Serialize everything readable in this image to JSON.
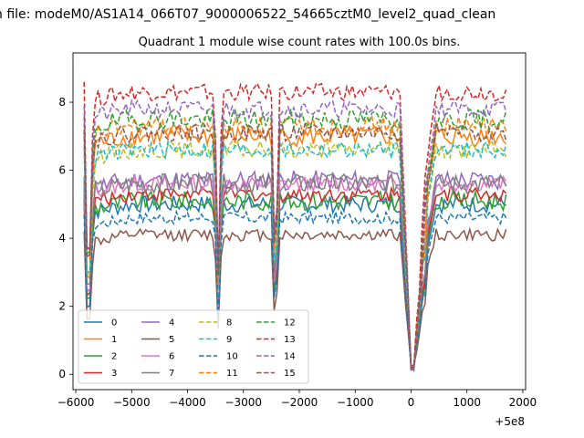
{
  "figure": {
    "suptitle": "n file: modeM0/AS1A14_066T07_9000006522_54665cztM0_level2_quad_clean",
    "title": "Quadrant 1 module wise count rates with 100.0s bins.",
    "x_offset_text": "+5e8"
  },
  "chart_data": {
    "type": "line",
    "title": "Quadrant 1 module wise count rates with 100.0s bins.",
    "xlabel": "",
    "ylabel": "",
    "x_offset": "+5e8",
    "xlim": [
      -6050,
      2050
    ],
    "ylim": [
      -0.45,
      9.45
    ],
    "xticks": [
      -6000,
      -5000,
      -4000,
      -3000,
      -2000,
      -1000,
      0,
      1000,
      2000
    ],
    "xtick_labels": [
      "−6000",
      "−5000",
      "−4000",
      "−3000",
      "−2000",
      "−1000",
      "0",
      "1000",
      "2000"
    ],
    "yticks": [
      0,
      2,
      4,
      6,
      8
    ],
    "ytick_labels": [
      "0",
      "2",
      "4",
      "6",
      "8"
    ],
    "grid": false,
    "legend_placement": "lower-left",
    "legend_columns": 4,
    "x": [
      -5850,
      -5800,
      -5750,
      -5700,
      -5650,
      -5600,
      -5550,
      -5500,
      -5450,
      -5400,
      -5350,
      -5300,
      -5250,
      -5200,
      -5150,
      -5100,
      -5050,
      -5000,
      -4950,
      -4900,
      -4850,
      -4800,
      -4750,
      -4700,
      -4650,
      -4600,
      -4550,
      -4500,
      -4450,
      -4400,
      -4350,
      -4300,
      -4250,
      -4200,
      -4150,
      -4100,
      -4050,
      -4000,
      -3950,
      -3900,
      -3850,
      -3800,
      -3750,
      -3700,
      -3650,
      -3600,
      -3550,
      -3500,
      -3450,
      -3400,
      -3350,
      -3300,
      -3250,
      -3200,
      -3150,
      -3100,
      -3050,
      -3000,
      -2950,
      -2900,
      -2850,
      -2800,
      -2750,
      -2700,
      -2650,
      -2600,
      -2550,
      -2500,
      -2450,
      -2400,
      -2350,
      -2300,
      -2250,
      -2200,
      -2150,
      -2100,
      -2050,
      -2000,
      -1950,
      -1900,
      -1850,
      -1800,
      -1750,
      -1700,
      -1650,
      -1600,
      -1550,
      -1500,
      -1450,
      -1400,
      -1350,
      -1300,
      -1250,
      -1200,
      -1150,
      -1100,
      -1050,
      -1000,
      -950,
      -900,
      -850,
      -800,
      -750,
      -700,
      -650,
      -600,
      -550,
      -500,
      -450,
      -400,
      -350,
      -300,
      -250,
      -200,
      -150,
      -100,
      -50,
      0,
      50,
      100,
      150,
      200,
      250,
      300,
      350,
      400,
      450,
      500,
      550,
      600,
      650,
      700,
      750,
      800,
      850,
      900,
      950,
      1000,
      1050,
      1100,
      1150,
      1200,
      1250,
      1300,
      1350,
      1400,
      1450,
      1500,
      1550,
      1600,
      1650,
      1700
    ],
    "series": [
      {
        "name": "0",
        "color": "#1f77b4",
        "dash": "solid",
        "level": 5.0,
        "dip": 0.32,
        "amp": 0.25
      },
      {
        "name": "1",
        "color": "#ff7f0e",
        "dash": "solid",
        "level": 7.0,
        "dip": 0.3,
        "amp": 0.3
      },
      {
        "name": "2",
        "color": "#2ca02c",
        "dash": "solid",
        "level": 5.1,
        "dip": 0.34,
        "amp": 0.28
      },
      {
        "name": "3",
        "color": "#d62728",
        "dash": "solid",
        "level": 5.3,
        "dip": 0.35,
        "amp": 0.22
      },
      {
        "name": "4",
        "color": "#9467bd",
        "dash": "solid",
        "level": 5.7,
        "dip": 0.36,
        "amp": 0.3
      },
      {
        "name": "5",
        "color": "#8c564b",
        "dash": "solid",
        "level": 4.1,
        "dip": 0.32,
        "amp": 0.18
      },
      {
        "name": "6",
        "color": "#e377c2",
        "dash": "solid",
        "level": 5.6,
        "dip": 0.34,
        "amp": 0.22
      },
      {
        "name": "7",
        "color": "#7f7f7f",
        "dash": "solid",
        "level": 5.6,
        "dip": 0.38,
        "amp": 0.3
      },
      {
        "name": "8",
        "color": "#bcbd22",
        "dash": "dashed",
        "level": 6.6,
        "dip": 0.35,
        "amp": 0.25
      },
      {
        "name": "9",
        "color": "#17becf",
        "dash": "dashed",
        "level": 6.6,
        "dip": 0.38,
        "amp": 0.25
      },
      {
        "name": "10",
        "color": "#1f77b4",
        "dash": "dashed",
        "level": 4.6,
        "dip": 0.36,
        "amp": 0.18
      },
      {
        "name": "11",
        "color": "#ff7f0e",
        "dash": "dashed",
        "level": 7.3,
        "dip": 0.37,
        "amp": 0.28
      },
      {
        "name": "12",
        "color": "#2ca02c",
        "dash": "dashed",
        "level": 7.5,
        "dip": 0.38,
        "amp": 0.3
      },
      {
        "name": "13",
        "color": "#d62728",
        "dash": "dashed",
        "level": 8.3,
        "dip": 0.36,
        "amp": 0.25
      },
      {
        "name": "14",
        "color": "#9467bd",
        "dash": "dashed",
        "level": 7.8,
        "dip": 0.4,
        "amp": 0.25
      },
      {
        "name": "15",
        "color": "#8c564b",
        "dash": "dashed",
        "level": 7.1,
        "dip": 0.42,
        "amp": 0.25
      }
    ]
  }
}
